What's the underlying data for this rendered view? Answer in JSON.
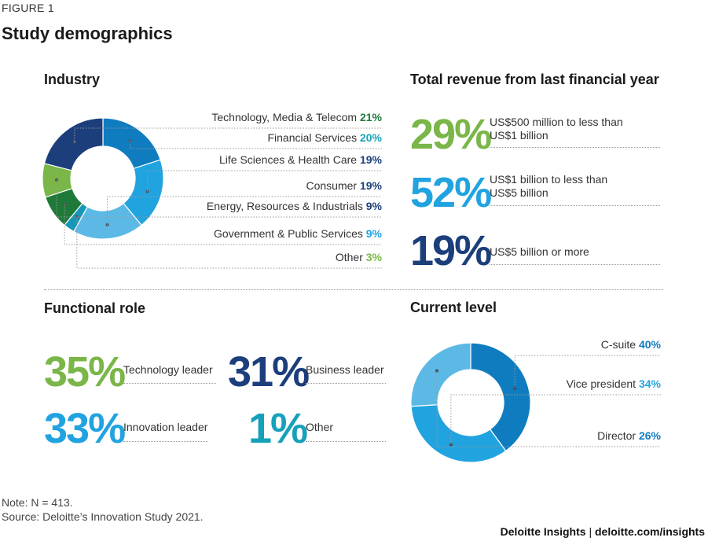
{
  "figure_label": "FIGURE 1",
  "title": "Study demographics",
  "colors": {
    "dark_green": "#1f7a3a",
    "teal": "#1697b8",
    "navy": "#1c3f7c",
    "light_blue": "#5cb9e6",
    "bright_blue": "#21a3e0",
    "green": "#7ab648",
    "mid_blue": "#0f7cc0",
    "aqua": "#16a1ba"
  },
  "chart_data": [
    {
      "type": "pie",
      "title": "Industry",
      "series": [
        {
          "name": "Technology, Media & Telecom",
          "value": 21,
          "value_label": "21%"
        },
        {
          "name": "Financial Services",
          "value": 20,
          "value_label": "20%"
        },
        {
          "name": "Life Sciences & Health Care",
          "value": 19,
          "value_label": "19%"
        },
        {
          "name": "Consumer",
          "value": 19,
          "value_label": "19%"
        },
        {
          "name": "Energy, Resources & Industrials",
          "value": 9,
          "value_label": "9%"
        },
        {
          "name": "Government & Public Services",
          "value": 9,
          "value_label": "9%"
        },
        {
          "name": "Other",
          "value": 3,
          "value_label": "3%"
        }
      ]
    },
    {
      "type": "table",
      "title": "Total revenue from last financial year",
      "rows": [
        {
          "value": "29%",
          "line1": "US$500 million to less than",
          "line2": "US$1 billion"
        },
        {
          "value": "52%",
          "line1": "US$1 billion to less than",
          "line2": "US$5 billion"
        },
        {
          "value": "19%",
          "line1": "US$5 billion or more",
          "line2": ""
        }
      ]
    },
    {
      "type": "table",
      "title": "Functional role",
      "items": [
        {
          "value": "35%",
          "label": "Technology leader"
        },
        {
          "value": "31%",
          "label": "Business leader"
        },
        {
          "value": "33%",
          "label": "Innovation leader"
        },
        {
          "value": "1%",
          "label": "Other"
        }
      ]
    },
    {
      "type": "pie",
      "title": "Current level",
      "series": [
        {
          "name": "C-suite",
          "value": 40,
          "value_label": "40%"
        },
        {
          "name": "Vice president",
          "value": 34,
          "value_label": "34%"
        },
        {
          "name": "Director",
          "value": 26,
          "value_label": "26%"
        }
      ]
    }
  ],
  "note": "Note: N = 413.",
  "source": "Source: Deloitte’s Innovation Study 2021.",
  "brand_name": "Deloitte Insights",
  "brand_sep": "|",
  "brand_url": "deloitte.com/insights"
}
